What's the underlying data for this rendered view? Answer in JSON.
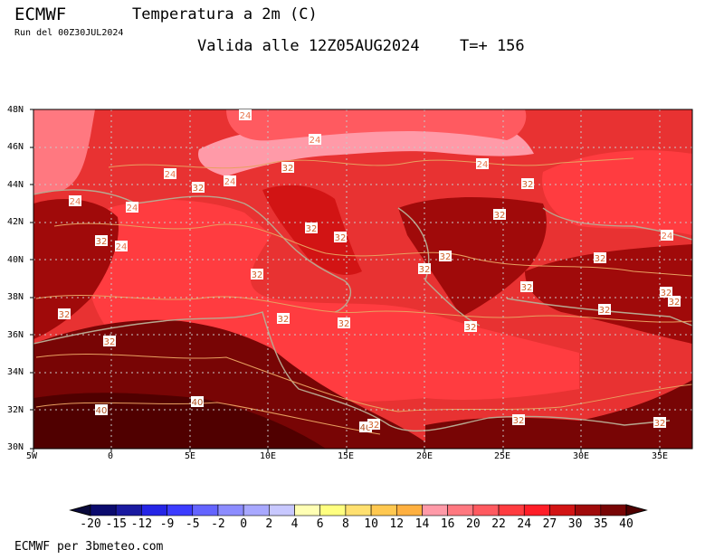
{
  "header": {
    "model": "ECMWF",
    "title": "Temperatura a 2m (C)",
    "run": "Run del 00Z30JUL2024",
    "valid": "Valida alle 12Z05AUG2024",
    "timestep": "T=+ 156"
  },
  "map": {
    "lat_labels": [
      "48N",
      "46N",
      "44N",
      "42N",
      "40N",
      "38N",
      "36N",
      "34N",
      "32N",
      "30N"
    ],
    "lon_labels": [
      "5W",
      "0",
      "5E",
      "10E",
      "15E",
      "20E",
      "25E",
      "30E",
      "35E"
    ],
    "contour_labels": [
      "24",
      "24",
      "32",
      "24",
      "24",
      "32",
      "24",
      "24",
      "24",
      "32",
      "24",
      "32",
      "32",
      "24",
      "32",
      "32",
      "32",
      "32",
      "32",
      "32",
      "32",
      "32",
      "32",
      "32",
      "32",
      "32",
      "32",
      "32",
      "32",
      "40",
      "40",
      "40",
      "32",
      "32",
      "32"
    ]
  },
  "colorbar": {
    "labels": [
      "-20",
      "-15",
      "-12",
      "-9",
      "-5",
      "-2",
      "0",
      "2",
      "4",
      "6",
      "8",
      "10",
      "12",
      "14",
      "16",
      "20",
      "22",
      "24",
      "27",
      "30",
      "35",
      "40"
    ],
    "colors": [
      "#0a0a3c",
      "#0b0b6e",
      "#1a1aa0",
      "#2525e6",
      "#3c3cff",
      "#6464ff",
      "#8c8cff",
      "#a8a8ff",
      "#c8c8ff",
      "#ffffb4",
      "#ffff80",
      "#ffe070",
      "#ffc850",
      "#ffb040",
      "#ff9aa8",
      "#ff7880",
      "#ff5a60",
      "#ff3c40",
      "#ff1e28",
      "#d21414",
      "#a00a0a",
      "#780505",
      "#500000"
    ]
  },
  "footer": "ECMWF per 3bmeteo.com"
}
